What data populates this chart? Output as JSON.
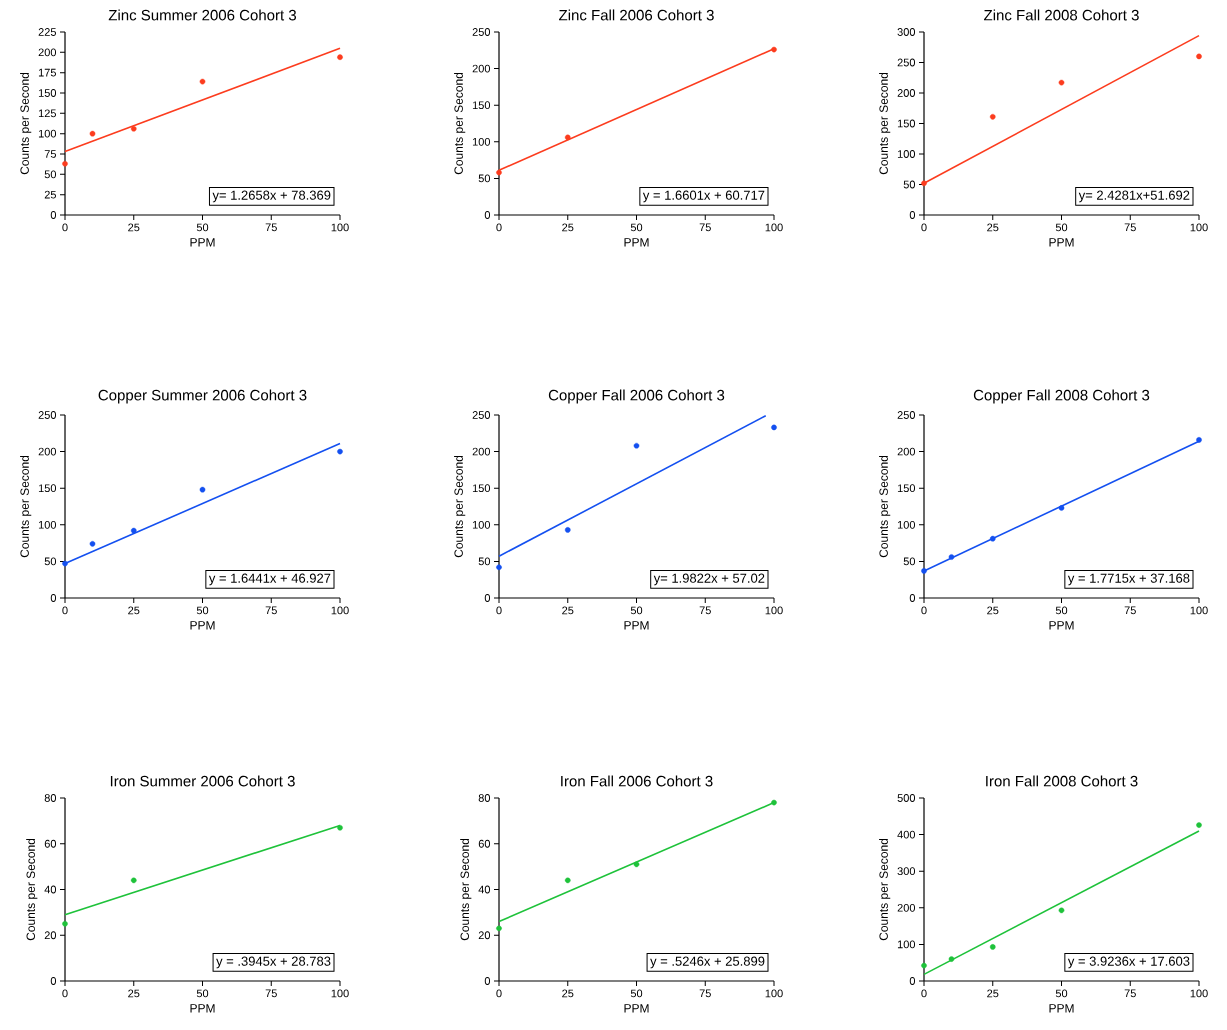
{
  "chart_data": [
    {
      "type": "scatter",
      "title": "Zinc Summer 2006 Cohort 3",
      "xlabel": "PPM",
      "ylabel": "Counts per Second",
      "xlim": [
        0,
        100
      ],
      "ylim": [
        0,
        225
      ],
      "xticks": [
        0,
        25,
        50,
        75,
        100
      ],
      "yticks": [
        0,
        25,
        50,
        75,
        100,
        125,
        150,
        175,
        200,
        225
      ],
      "annotations": [
        "y= 1.2658x + 78.369"
      ],
      "series": [
        {
          "type": "scatter",
          "marker": "circle",
          "color": "#fc3c1e",
          "x": [
            0,
            10,
            25,
            50,
            100
          ],
          "values": [
            63,
            100,
            106,
            164,
            194
          ]
        },
        {
          "type": "line",
          "color": "#fc3c1e",
          "x": [
            0,
            100
          ],
          "values": [
            78,
            205
          ]
        }
      ]
    },
    {
      "type": "scatter",
      "title": "Zinc Fall 2006 Cohort 3",
      "xlabel": "PPM",
      "ylabel": "Counts per Second",
      "xlim": [
        0,
        100
      ],
      "ylim": [
        0,
        250
      ],
      "xticks": [
        0,
        25,
        50,
        75,
        100
      ],
      "yticks": [
        0,
        50,
        100,
        150,
        200,
        250
      ],
      "annotations": [
        "y = 1.6601x + 60.717"
      ],
      "series": [
        {
          "type": "scatter",
          "marker": "circle",
          "color": "#fc3c1e",
          "x": [
            0,
            25,
            100
          ],
          "values": [
            58,
            106,
            226
          ]
        },
        {
          "type": "line",
          "color": "#fc3c1e",
          "x": [
            0,
            100
          ],
          "values": [
            61,
            227
          ]
        }
      ]
    },
    {
      "type": "scatter",
      "title": "Zinc Fall 2008 Cohort 3",
      "xlabel": "PPM",
      "ylabel": "Counts per Second",
      "xlim": [
        0,
        100
      ],
      "ylim": [
        0,
        300
      ],
      "xticks": [
        0,
        25,
        50,
        75,
        100
      ],
      "yticks": [
        0,
        50,
        100,
        150,
        200,
        250,
        300
      ],
      "annotations": [
        "y= 2.4281x+51.692"
      ],
      "series": [
        {
          "type": "scatter",
          "marker": "circle",
          "color": "#fc3c1e",
          "x": [
            0,
            25,
            50,
            100
          ],
          "values": [
            52,
            161,
            217,
            260
          ]
        },
        {
          "type": "line",
          "color": "#fc3c1e",
          "x": [
            0,
            100
          ],
          "values": [
            52,
            294
          ]
        }
      ]
    },
    {
      "type": "scatter",
      "title": "Copper Summer 2006 Cohort 3",
      "xlabel": "PPM",
      "ylabel": "Counts per Second",
      "xlim": [
        0,
        100
      ],
      "ylim": [
        0,
        250
      ],
      "xticks": [
        0,
        25,
        50,
        75,
        100
      ],
      "yticks": [
        0,
        50,
        100,
        150,
        200,
        250
      ],
      "annotations": [
        "y =  1.6441x + 46.927"
      ],
      "series": [
        {
          "type": "scatter",
          "marker": "circle",
          "color": "#1450f0",
          "x": [
            0,
            10,
            25,
            50,
            100
          ],
          "values": [
            47,
            74,
            92,
            148,
            200
          ]
        },
        {
          "type": "line",
          "color": "#1450f0",
          "x": [
            0,
            100
          ],
          "values": [
            47,
            211
          ]
        }
      ]
    },
    {
      "type": "scatter",
      "title": "Copper Fall 2006 Cohort 3",
      "xlabel": "PPM",
      "ylabel": "Counts per Second",
      "xlim": [
        0,
        100
      ],
      "ylim": [
        0,
        250
      ],
      "xticks": [
        0,
        25,
        50,
        75,
        100
      ],
      "yticks": [
        0,
        50,
        100,
        150,
        200,
        250
      ],
      "annotations": [
        "y= 1.9822x + 57.02"
      ],
      "series": [
        {
          "type": "scatter",
          "marker": "circle",
          "color": "#1450f0",
          "x": [
            0,
            25,
            50,
            100
          ],
          "values": [
            42,
            93,
            208,
            233
          ]
        },
        {
          "type": "line",
          "color": "#1450f0",
          "x": [
            0,
            97
          ],
          "values": [
            57,
            249
          ]
        }
      ]
    },
    {
      "type": "scatter",
      "title": "Copper Fall 2008 Cohort 3",
      "xlabel": "PPM",
      "ylabel": "Counts per Second",
      "xlim": [
        0,
        100
      ],
      "ylim": [
        0,
        250
      ],
      "xticks": [
        0,
        25,
        50,
        75,
        100
      ],
      "yticks": [
        0,
        50,
        100,
        150,
        200,
        250
      ],
      "annotations": [
        "y = 1.7715x + 37.168"
      ],
      "series": [
        {
          "type": "scatter",
          "marker": "circle",
          "color": "#1450f0",
          "x": [
            0,
            10,
            25,
            50,
            100
          ],
          "values": [
            37,
            56,
            81,
            123,
            216
          ]
        },
        {
          "type": "line",
          "color": "#1450f0",
          "x": [
            0,
            100
          ],
          "values": [
            37,
            214
          ]
        }
      ]
    },
    {
      "type": "scatter",
      "title": "Iron Summer 2006 Cohort 3",
      "xlabel": "PPM",
      "ylabel": "Counts per Second",
      "xlim": [
        0,
        100
      ],
      "ylim": [
        0,
        80
      ],
      "xticks": [
        0,
        25,
        50,
        75,
        100
      ],
      "yticks": [
        0,
        20,
        40,
        60,
        80
      ],
      "annotations": [
        "y = .3945x + 28.783"
      ],
      "series": [
        {
          "type": "scatter",
          "marker": "circle",
          "color": "#1ec23a",
          "x": [
            0,
            25,
            100
          ],
          "values": [
            25,
            44,
            67
          ]
        },
        {
          "type": "line",
          "color": "#1ec23a",
          "x": [
            0,
            100
          ],
          "values": [
            29,
            68
          ]
        }
      ]
    },
    {
      "type": "scatter",
      "title": "Iron Fall 2006 Cohort 3",
      "xlabel": "PPM",
      "ylabel": "Counts per Second",
      "xlim": [
        0,
        100
      ],
      "ylim": [
        0,
        80
      ],
      "xticks": [
        0,
        25,
        50,
        75,
        100
      ],
      "yticks": [
        0,
        20,
        40,
        60,
        80
      ],
      "annotations": [
        "y = .5246x + 25.899"
      ],
      "series": [
        {
          "type": "scatter",
          "marker": "circle",
          "color": "#1ec23a",
          "x": [
            0,
            25,
            50,
            100
          ],
          "values": [
            23,
            44,
            51,
            78
          ]
        },
        {
          "type": "line",
          "color": "#1ec23a",
          "x": [
            0,
            100
          ],
          "values": [
            26,
            78
          ]
        }
      ]
    },
    {
      "type": "scatter",
      "title": "Iron Fall 2008 Cohort 3",
      "xlabel": "PPM",
      "ylabel": "Counts per Second",
      "xlim": [
        0,
        100
      ],
      "ylim": [
        0,
        500
      ],
      "xticks": [
        0,
        25,
        50,
        75,
        100
      ],
      "yticks": [
        0,
        100,
        200,
        300,
        400,
        500
      ],
      "annotations": [
        "y = 3.9236x + 17.603"
      ],
      "series": [
        {
          "type": "scatter",
          "marker": "circle",
          "color": "#1ec23a",
          "x": [
            0,
            10,
            25,
            50,
            100
          ],
          "values": [
            42,
            60,
            93,
            193,
            426
          ]
        },
        {
          "type": "line",
          "color": "#1ec23a",
          "x": [
            0,
            100
          ],
          "values": [
            18,
            410
          ]
        }
      ]
    }
  ]
}
